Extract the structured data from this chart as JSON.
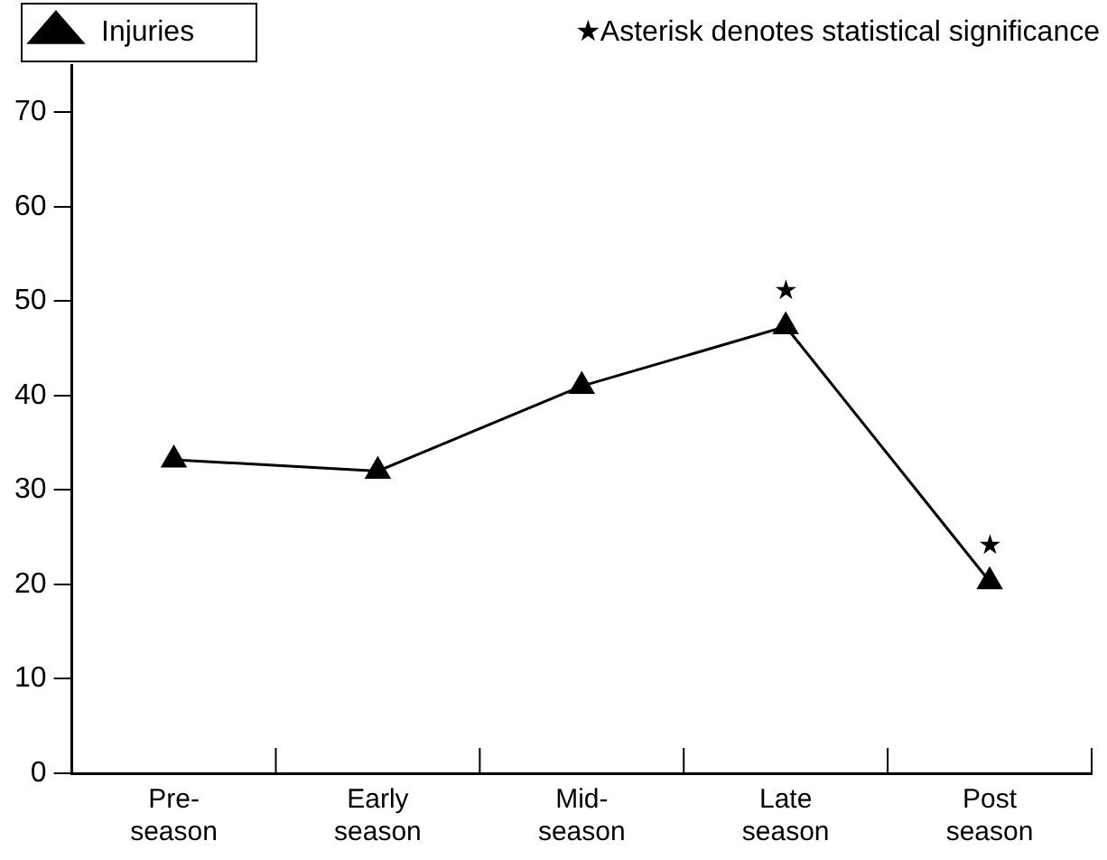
{
  "chart_data": {
    "type": "line",
    "categories": [
      "Pre- season",
      "Early season",
      "Mid- season",
      "Late season",
      "Post season"
    ],
    "series": [
      {
        "name": "Injuries",
        "color": "#000000",
        "values": [
          33.2,
          32,
          41,
          47.3,
          20.3
        ],
        "value_labels": [
          null,
          null,
          null,
          "★",
          "★"
        ]
      }
    ],
    "ylim": [
      0,
      75
    ],
    "yticks": [
      0,
      10,
      20,
      30,
      40,
      50,
      60,
      70
    ],
    "grid": false,
    "legend": "top left",
    "marker": "triangle",
    "line_style": "solid",
    "annotations": [
      "★Asterisk denotes statistical significance"
    ]
  }
}
